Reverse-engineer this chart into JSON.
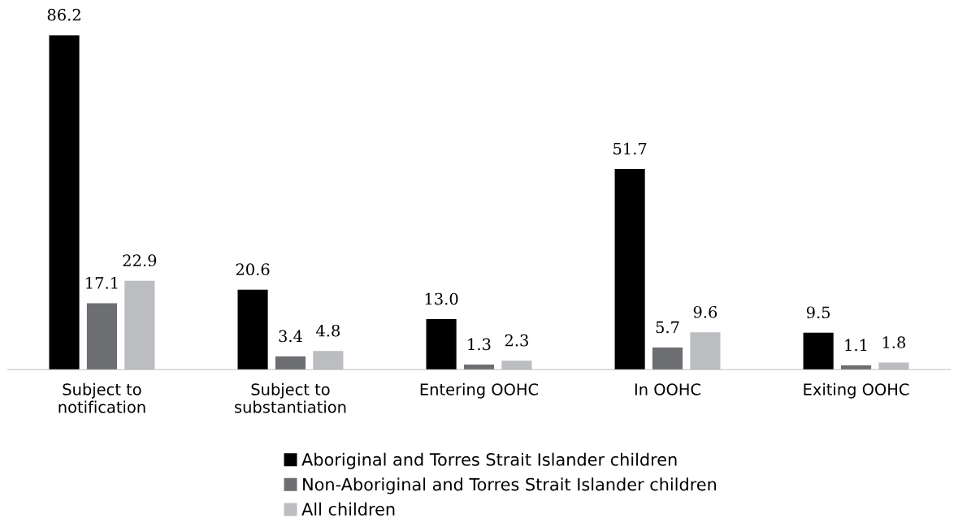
{
  "chart_data": {
    "type": "bar",
    "categories": [
      "Subject to\nnotification",
      "Subject to\nsubstantiation",
      "Entering OOHC",
      "In OOHC",
      "Exiting OOHC"
    ],
    "series": [
      {
        "name": "Aboriginal and Torres Strait Islander children",
        "color": "#000000",
        "values": [
          86.2,
          20.6,
          13.0,
          51.7,
          9.5
        ],
        "value_labels": [
          "86.2",
          "20.6",
          "13.0",
          "51.7",
          "9.5"
        ]
      },
      {
        "name": "Non-Aboriginal and Torres Strait Islander children",
        "color": "#6d6e71",
        "values": [
          17.1,
          3.4,
          1.3,
          5.7,
          1.1
        ],
        "value_labels": [
          "17.1",
          "3.4",
          "1.3",
          "5.7",
          "1.1"
        ]
      },
      {
        "name": "All children",
        "color": "#bcbdc0",
        "values": [
          22.9,
          4.8,
          2.3,
          9.6,
          1.8
        ],
        "value_labels": [
          "22.9",
          "4.8",
          "2.3",
          "9.6",
          "1.8"
        ]
      }
    ],
    "legend": "bottom",
    "grid": false,
    "tick_labels": "x"
  }
}
